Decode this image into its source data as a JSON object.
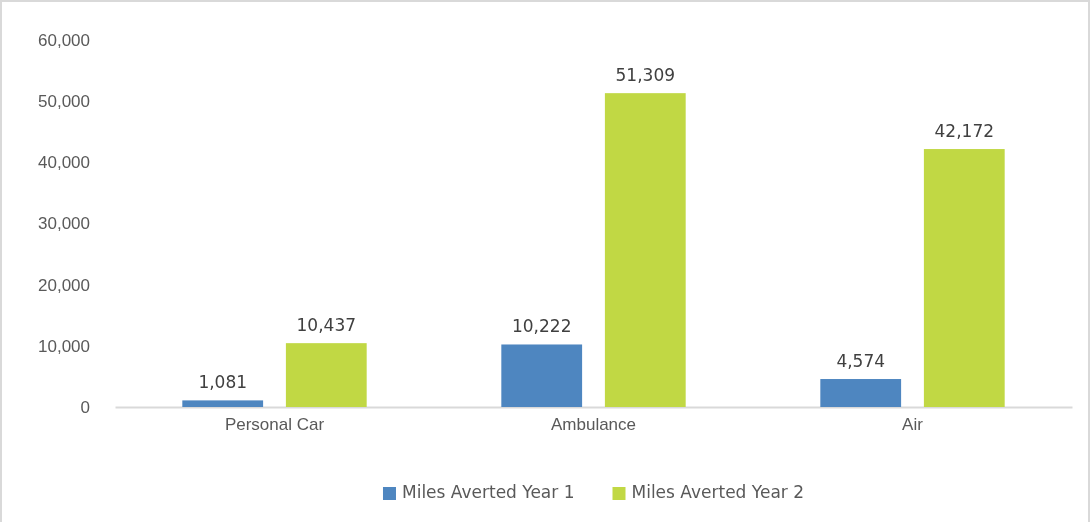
{
  "chart_data": {
    "type": "bar",
    "categories": [
      "Personal Car",
      "Ambulance",
      "Air"
    ],
    "series": [
      {
        "name": "Miles Averted Year 1",
        "color": "#4e86c0",
        "values": [
          1081,
          10222,
          4574
        ],
        "value_labels": [
          "1,081",
          "10,222",
          "4,574"
        ]
      },
      {
        "name": "Miles Averted Year 2",
        "color": "#c1d844",
        "values": [
          10437,
          51309,
          42172
        ],
        "value_labels": [
          "10,437",
          "51,309",
          "42,172"
        ]
      }
    ],
    "ylim": [
      0,
      60000
    ],
    "yticks": [
      {
        "value": 0,
        "label": "0"
      },
      {
        "value": 10000,
        "label": "10,000"
      },
      {
        "value": 20000,
        "label": "20,000"
      },
      {
        "value": 30000,
        "label": "30,000"
      },
      {
        "value": 40000,
        "label": "40,000"
      },
      {
        "value": 50000,
        "label": "50,000"
      },
      {
        "value": 60000,
        "label": "60,000"
      }
    ],
    "grid": false,
    "legend": "bottom"
  }
}
